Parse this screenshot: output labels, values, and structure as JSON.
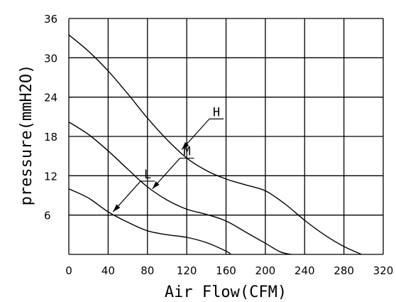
{
  "chart_data": {
    "type": "line",
    "title": "",
    "xlabel": "Air Flow(CFM)",
    "ylabel": "pressure(mmH2O)",
    "xlim": [
      0,
      320
    ],
    "ylim": [
      0,
      36
    ],
    "xticks": [
      0,
      40,
      80,
      120,
      160,
      200,
      240,
      280,
      320
    ],
    "yticks": [
      6,
      12,
      18,
      24,
      30,
      36
    ],
    "grid": true,
    "legend": "none",
    "series": [
      {
        "name": "H",
        "color": "#000000",
        "points": [
          [
            0,
            33.5
          ],
          [
            20,
            31
          ],
          [
            40,
            28
          ],
          [
            60,
            24.5
          ],
          [
            80,
            20.8
          ],
          [
            100,
            17.5
          ],
          [
            120,
            14.7
          ],
          [
            140,
            12.8
          ],
          [
            160,
            11.5
          ],
          [
            180,
            10.6
          ],
          [
            200,
            9.7
          ],
          [
            220,
            7.7
          ],
          [
            240,
            5.2
          ],
          [
            260,
            3.0
          ],
          [
            280,
            1.2
          ],
          [
            298,
            0
          ]
        ]
      },
      {
        "name": "M",
        "color": "#000000",
        "points": [
          [
            0,
            20.2
          ],
          [
            20,
            18.3
          ],
          [
            40,
            15.8
          ],
          [
            60,
            13.0
          ],
          [
            80,
            10.3
          ],
          [
            100,
            8.3
          ],
          [
            120,
            6.9
          ],
          [
            140,
            6.1
          ],
          [
            160,
            5.1
          ],
          [
            180,
            3.4
          ],
          [
            200,
            1.7
          ],
          [
            215,
            0.4
          ],
          [
            226,
            0
          ]
        ]
      },
      {
        "name": "L",
        "color": "#000000",
        "points": [
          [
            0,
            10
          ],
          [
            20,
            8.6
          ],
          [
            40,
            6.5
          ],
          [
            60,
            4.9
          ],
          [
            80,
            3.6
          ],
          [
            100,
            3.0
          ],
          [
            120,
            2.6
          ],
          [
            140,
            1.8
          ],
          [
            160,
            0.5
          ],
          [
            165,
            0
          ]
        ]
      }
    ],
    "annotations": [
      {
        "text": "H",
        "series": "H",
        "x": 115,
        "y": 16
      },
      {
        "text": "M",
        "series": "M",
        "x": 85,
        "y": 10
      },
      {
        "text": "L",
        "series": "L",
        "x": 45,
        "y": 6.5
      }
    ]
  }
}
